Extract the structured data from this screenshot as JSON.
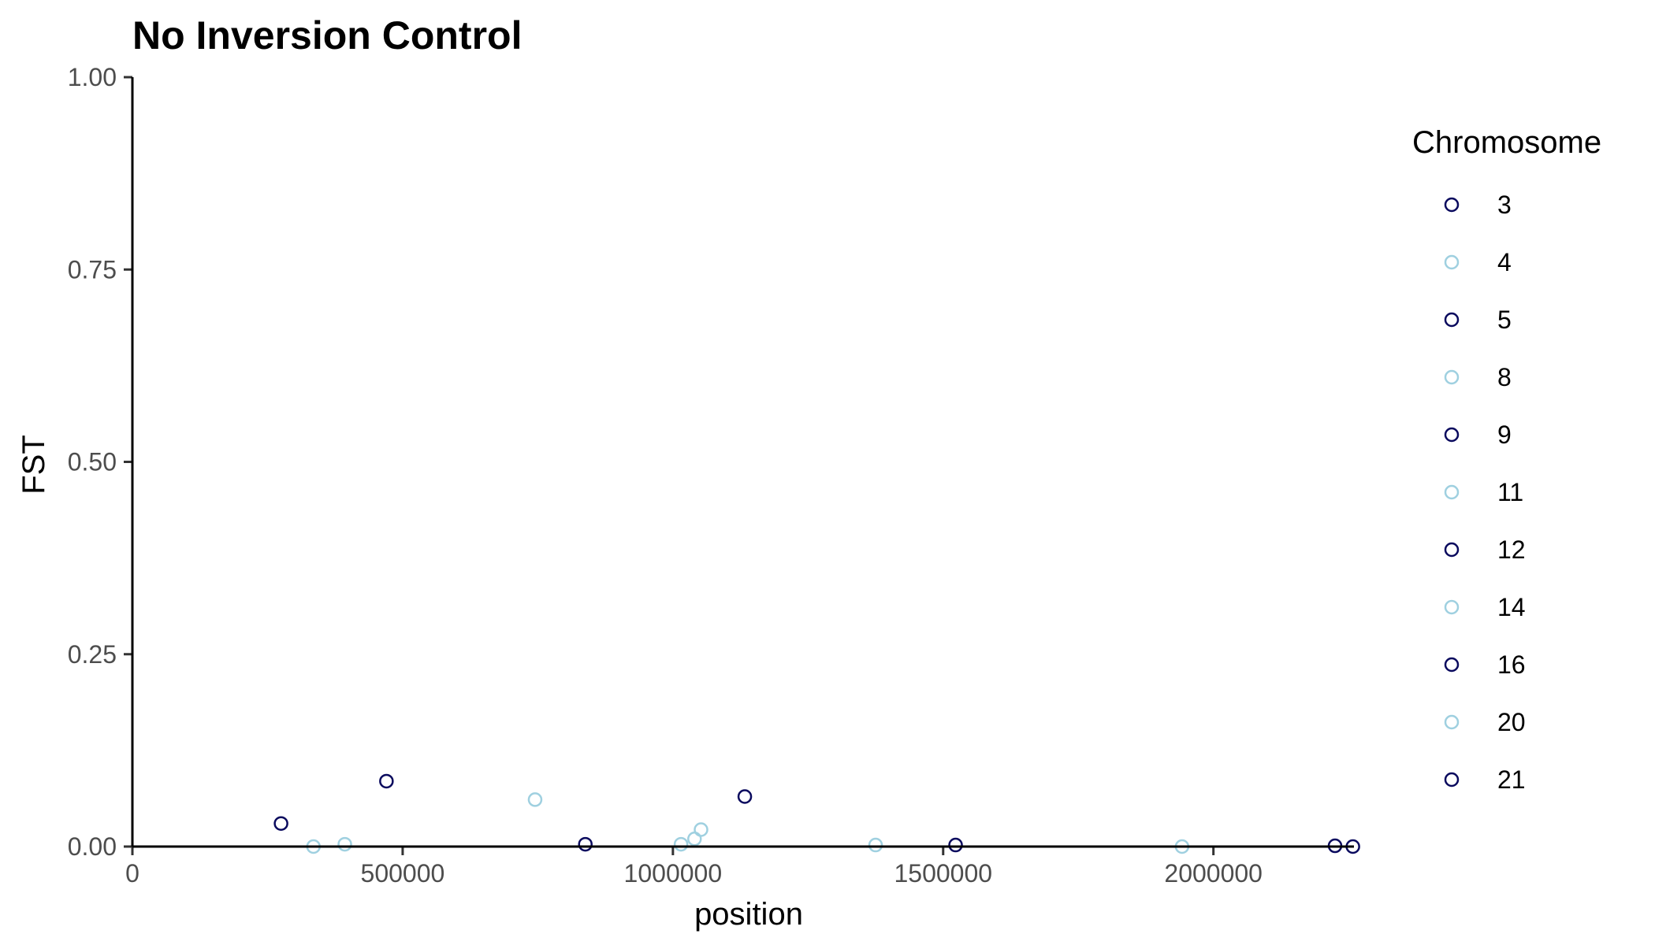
{
  "chart_data": {
    "type": "scatter",
    "title": "No Inversion Control",
    "xlabel": "position",
    "ylabel": "FST",
    "xlim": [
      0,
      2260000
    ],
    "ylim": [
      0,
      1.0
    ],
    "x_ticks": [
      0,
      500000,
      1000000,
      1500000,
      2000000
    ],
    "x_tick_labels": [
      "0",
      "500000",
      "1000000",
      "1500000",
      "2000000"
    ],
    "y_ticks": [
      0,
      0.25,
      0.5,
      0.75,
      1.0
    ],
    "y_tick_labels": [
      "0.00",
      "0.25",
      "0.50",
      "0.75",
      "1.00"
    ],
    "grid": false,
    "legend": {
      "title": "Chromosome",
      "placement": "right",
      "entries": [
        {
          "label": "3",
          "color": "#0a0a5e"
        },
        {
          "label": "4",
          "color": "#9fd0e0"
        },
        {
          "label": "5",
          "color": "#0a0a5e"
        },
        {
          "label": "8",
          "color": "#9fd0e0"
        },
        {
          "label": "9",
          "color": "#0a0a5e"
        },
        {
          "label": "11",
          "color": "#9fd0e0"
        },
        {
          "label": "12",
          "color": "#0a0a5e"
        },
        {
          "label": "14",
          "color": "#9fd0e0"
        },
        {
          "label": "16",
          "color": "#0a0a5e"
        },
        {
          "label": "20",
          "color": "#9fd0e0"
        },
        {
          "label": "21",
          "color": "#0a0a5e"
        }
      ]
    },
    "series": [
      {
        "color": "#0a0a5e",
        "points": [
          {
            "x": 275000,
            "y": 0.03
          },
          {
            "x": 470000,
            "y": 0.085
          },
          {
            "x": 838000,
            "y": 0.003
          },
          {
            "x": 1133000,
            "y": 0.065
          },
          {
            "x": 1523000,
            "y": 0.002
          },
          {
            "x": 2225000,
            "y": 0.001
          },
          {
            "x": 2258000,
            "y": 0.0
          }
        ]
      },
      {
        "color": "#9fd0e0",
        "points": [
          {
            "x": 335000,
            "y": 0.0
          },
          {
            "x": 393000,
            "y": 0.003
          },
          {
            "x": 745000,
            "y": 0.061
          },
          {
            "x": 1015000,
            "y": 0.003
          },
          {
            "x": 1040000,
            "y": 0.01
          },
          {
            "x": 1052000,
            "y": 0.022
          },
          {
            "x": 1375000,
            "y": 0.002
          },
          {
            "x": 1942000,
            "y": 0.0
          }
        ]
      }
    ]
  }
}
